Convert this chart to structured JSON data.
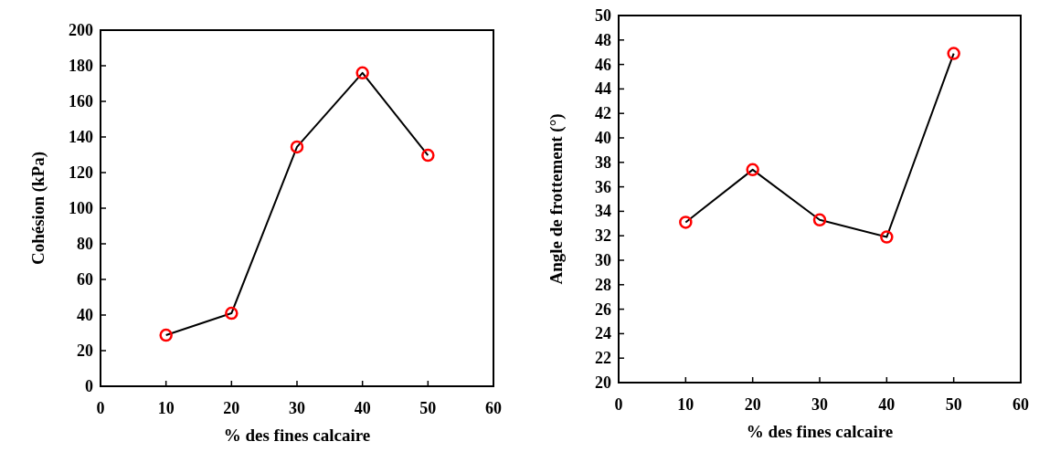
{
  "chart_data": [
    {
      "type": "line",
      "xlabel": "% des fines calcaire",
      "ylabel": "Cohésion (kPa)",
      "x": [
        10,
        20,
        30,
        40,
        50
      ],
      "xlim": [
        0,
        60
      ],
      "xticks": [
        0,
        10,
        20,
        30,
        40,
        50,
        60
      ],
      "ylim": [
        0,
        200
      ],
      "yticks": [
        0,
        20,
        40,
        60,
        80,
        100,
        120,
        140,
        160,
        180,
        200
      ],
      "series": [
        {
          "color": "#000000",
          "marker": "none",
          "values": [
            28.7,
            41,
            134.4,
            176,
            129.7
          ]
        },
        {
          "type": "scatter",
          "color": "#ff0000",
          "marker": "circle",
          "values": [
            28.7,
            41,
            134.4,
            176,
            129.7
          ]
        }
      ]
    },
    {
      "type": "line",
      "xlabel": "% des fines calcaire",
      "ylabel": "Angle de frottement (°)",
      "x": [
        10,
        20,
        30,
        40,
        50
      ],
      "xlim": [
        0,
        60
      ],
      "xticks": [
        0,
        10,
        20,
        30,
        40,
        50,
        60
      ],
      "ylim": [
        20,
        50
      ],
      "yticks": [
        20,
        22,
        24,
        26,
        28,
        30,
        32,
        34,
        36,
        38,
        40,
        42,
        44,
        46,
        48,
        50
      ],
      "series": [
        {
          "color": "#000000",
          "marker": "none",
          "values": [
            33.1,
            37.4,
            33.3,
            31.9,
            46.9
          ]
        },
        {
          "type": "scatter",
          "color": "#ff0000",
          "marker": "circle",
          "values": [
            33.1,
            37.4,
            33.3,
            31.9,
            46.9
          ]
        }
      ]
    }
  ]
}
